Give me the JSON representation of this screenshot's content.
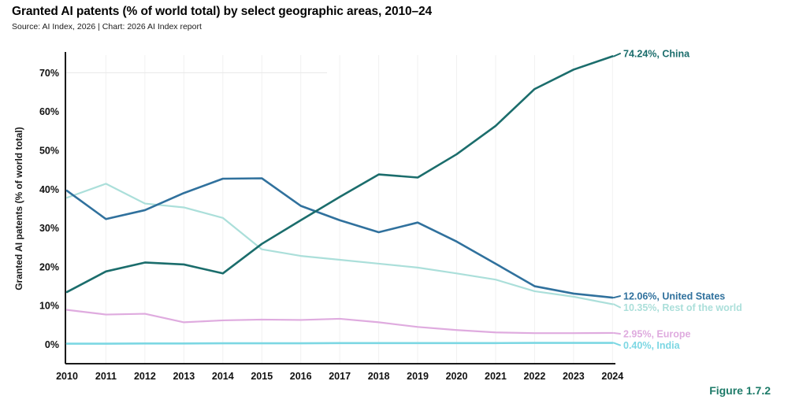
{
  "header": {
    "title": "Granted AI patents (% of world total) by select geographic areas, 2010–24",
    "source": "Source: AI Index, 2026 | Chart: 2026 AI Index report"
  },
  "footer": {
    "figure_label": "Figure 1.7.2"
  },
  "colors": {
    "china": "#1b6d6c",
    "united_states": "#30719d",
    "rest_of_world": "#abdfda",
    "europe": "#dfabdf",
    "india": "#7cd7e3",
    "figure_accent": "#1e7b69",
    "axis": "#1a1a1a",
    "gridline": "#f1f1f1"
  },
  "chart_data": {
    "type": "line",
    "title": "Granted AI patents (% of world total) by select geographic areas, 2010–24",
    "xlabel": "",
    "ylabel": "Granted AI patents (% of world total)",
    "x": [
      2010,
      2011,
      2012,
      2013,
      2014,
      2015,
      2016,
      2017,
      2018,
      2019,
      2020,
      2021,
      2022,
      2023,
      2024
    ],
    "y_ticks": [
      0,
      10,
      20,
      30,
      40,
      50,
      60,
      70
    ],
    "y_tick_labels": [
      "0%",
      "10%",
      "20%",
      "30%",
      "40%",
      "50%",
      "60%",
      "70%"
    ],
    "ylim": [
      0,
      75
    ],
    "grid": "faint vertical gridlines per year; partial horizontal gridline at 70%",
    "legend_position": "end-of-line labels, right side",
    "series": [
      {
        "name": "China",
        "color": "#1b6d6c",
        "end_label": "74.24%, China",
        "end_value": 74.24,
        "values": [
          13.5,
          18.8,
          21.1,
          20.6,
          18.3,
          25.9,
          32.0,
          38.0,
          43.8,
          43.0,
          49.0,
          56.3,
          65.8,
          70.8,
          74.24
        ]
      },
      {
        "name": "United States",
        "color": "#30719d",
        "end_label": "12.06%, United States",
        "end_value": 12.06,
        "values": [
          39.6,
          32.3,
          34.6,
          39.0,
          42.7,
          42.8,
          35.7,
          32.0,
          28.9,
          31.4,
          26.5,
          20.8,
          15.0,
          13.1,
          12.06
        ]
      },
      {
        "name": "Rest of the world",
        "color": "#abdfda",
        "end_label": "10.35%, Rest of the world",
        "end_value": 10.35,
        "values": [
          37.8,
          41.4,
          36.3,
          35.3,
          32.6,
          24.5,
          22.8,
          21.8,
          20.8,
          19.8,
          18.3,
          16.7,
          13.7,
          12.3,
          10.35
        ]
      },
      {
        "name": "Europe",
        "color": "#dfabdf",
        "end_label": "2.95%, Europe",
        "end_value": 2.95,
        "values": [
          8.9,
          7.7,
          7.9,
          5.7,
          6.2,
          6.4,
          6.3,
          6.6,
          5.7,
          4.5,
          3.7,
          3.1,
          2.9,
          2.9,
          2.95
        ]
      },
      {
        "name": "India",
        "color": "#7cd7e3",
        "end_label": "0.40%, India",
        "end_value": 0.4,
        "values": [
          0.2,
          0.2,
          0.25,
          0.25,
          0.3,
          0.3,
          0.3,
          0.35,
          0.35,
          0.35,
          0.35,
          0.35,
          0.4,
          0.4,
          0.4
        ]
      }
    ]
  }
}
